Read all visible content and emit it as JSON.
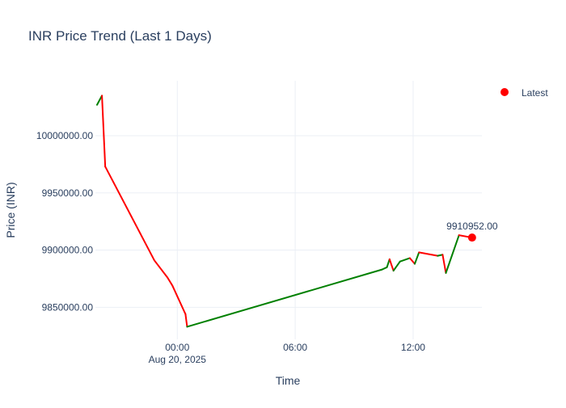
{
  "chart_data": {
    "type": "line",
    "title": "INR Price Trend (Last 1 Days)",
    "xlabel": "Time",
    "ylabel": "Price (INR)",
    "x_axis": {
      "type": "date",
      "range": [
        "2025-08-19 19:50",
        "2025-08-20 15:30"
      ],
      "ticks": [
        {
          "at": "2025-08-20 00:00",
          "label": "00:00",
          "sublabel": "Aug 20, 2025"
        },
        {
          "at": "2025-08-20 06:00",
          "label": "06:00",
          "sublabel": ""
        },
        {
          "at": "2025-08-20 12:00",
          "label": "12:00",
          "sublabel": ""
        }
      ]
    },
    "y_axis": {
      "range": [
        9822000,
        10048000
      ],
      "ticks": [
        {
          "value": 9850000,
          "label": "9850000.00"
        },
        {
          "value": 9900000,
          "label": "9900000.00"
        },
        {
          "value": 9950000,
          "label": "9950000.00"
        },
        {
          "value": 10000000,
          "label": "10000000.00"
        }
      ]
    },
    "grid": true,
    "colors": {
      "up": "#008000",
      "down": "#ff0000",
      "marker": "#ff0000",
      "grid": "#ebeff5",
      "text": "#2a3f5f"
    },
    "x": [
      "2025-08-19 19:55",
      "2025-08-19 20:10",
      "2025-08-19 20:20",
      "2025-08-19 22:50",
      "2025-08-19 23:30",
      "2025-08-19 23:45",
      "2025-08-20 00:25",
      "2025-08-20 00:30",
      "2025-08-20 10:25",
      "2025-08-20 10:40",
      "2025-08-20 10:48",
      "2025-08-20 11:00",
      "2025-08-20 11:20",
      "2025-08-20 11:50",
      "2025-08-20 12:05",
      "2025-08-20 12:18",
      "2025-08-20 13:15",
      "2025-08-20 13:30",
      "2025-08-20 13:40",
      "2025-08-20 14:20",
      "2025-08-20 15:00"
    ],
    "y": [
      10027000,
      10035000,
      9973000,
      9891000,
      9876000,
      9869000,
      9844000,
      9833000,
      9883000,
      9885000,
      9892000,
      9882000,
      9890000,
      9893000,
      9888000,
      9898000,
      9895000,
      9896000,
      9880000,
      9913000,
      9910952
    ],
    "latest": {
      "x": "2025-08-20 15:00",
      "y": 9910952,
      "label": "9910952.00"
    },
    "legend": {
      "position": "top-right",
      "entries": [
        {
          "name": "Latest",
          "color": "#ff0000",
          "symbol": "circle"
        }
      ]
    }
  }
}
